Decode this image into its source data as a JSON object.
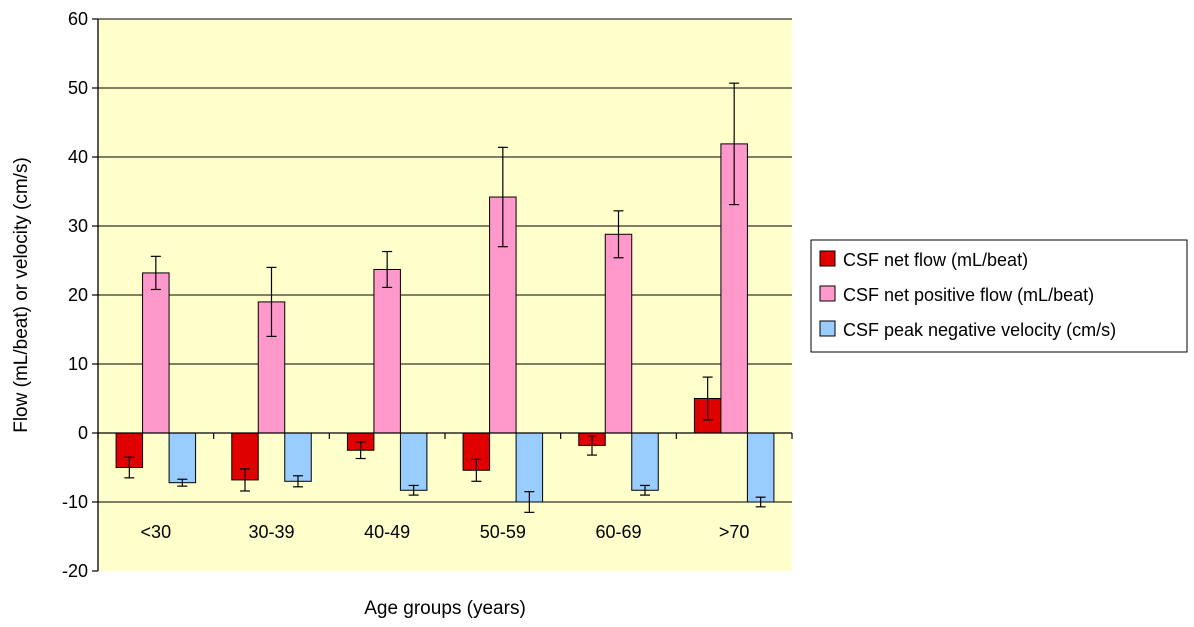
{
  "chart_data": {
    "type": "bar",
    "title": "",
    "xlabel": "Age groups (years)",
    "ylabel": "Flow (mL/beat) or velocity (cm/s)",
    "ylim": [
      -20,
      60
    ],
    "yticks": [
      60,
      50,
      40,
      30,
      20,
      10,
      0,
      -10,
      -20
    ],
    "grid": true,
    "legend_position": "right",
    "plot_background": "#ffffcc",
    "categories": [
      "<30",
      "30-39",
      "40-49",
      "50-59",
      "60-69",
      ">70"
    ],
    "series": [
      {
        "name": "CSF net flow (mL/beat)",
        "color": "#e00000",
        "values": [
          -5.0,
          -6.8,
          -2.5,
          -5.4,
          -1.8,
          5.0
        ],
        "errors": [
          1.5,
          1.6,
          1.2,
          1.6,
          1.4,
          3.1
        ]
      },
      {
        "name": "CSF net positive flow (mL/beat)",
        "color": "#ff99cc",
        "values": [
          23.2,
          19.0,
          23.7,
          34.2,
          28.8,
          41.9
        ],
        "errors": [
          2.4,
          5.0,
          2.6,
          7.2,
          3.4,
          8.8
        ]
      },
      {
        "name": "CSF peak negative velocity (cm/s)",
        "color": "#99ccff",
        "values": [
          -7.2,
          -7.0,
          -8.3,
          -10.0,
          -8.3,
          -10.0
        ],
        "errors": [
          0.5,
          0.8,
          0.7,
          1.5,
          0.7,
          0.7
        ]
      }
    ]
  }
}
